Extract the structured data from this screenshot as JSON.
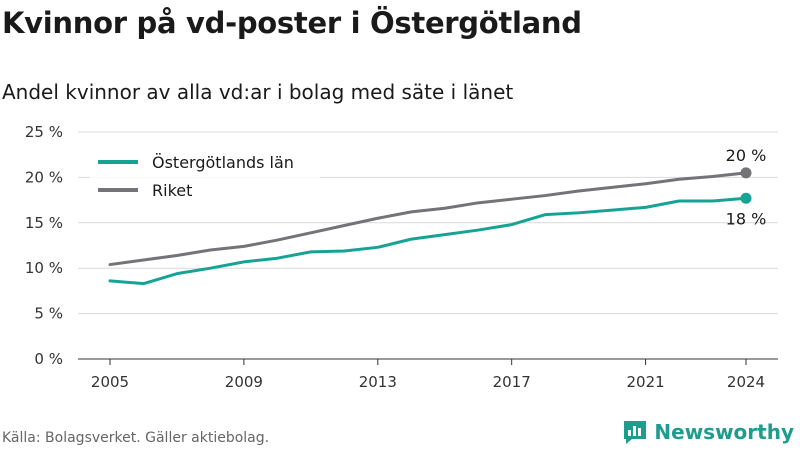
{
  "header": {
    "title": "Kvinnor på vd-poster i Östergötland",
    "subtitle": "Andel kvinnor av alla vd:ar i bolag med säte i länet"
  },
  "footer": {
    "source": "Källa: Bolagsverket. Gäller aktiebolag.",
    "brand": "Newsworthy",
    "brand_icon": "newsworthy-logo-icon"
  },
  "colors": {
    "series_1": "#16a394",
    "series_2": "#737378",
    "grid": "#d9d9d9",
    "brand": "#1e9c8c"
  },
  "chart_data": {
    "type": "line",
    "title": "Kvinnor på vd-poster i Östergötland",
    "subtitle": "Andel kvinnor av alla vd:ar i bolag med säte i länet",
    "xlabel": "",
    "ylabel": "",
    "x": [
      2005,
      2006,
      2007,
      2008,
      2009,
      2010,
      2011,
      2012,
      2013,
      2014,
      2015,
      2016,
      2017,
      2018,
      2019,
      2020,
      2021,
      2022,
      2023,
      2024
    ],
    "xticks": [
      2005,
      2009,
      2013,
      2017,
      2021,
      2024
    ],
    "xtick_labels": [
      "2005",
      "2009",
      "2013",
      "2017",
      "2021",
      "2024"
    ],
    "ylim": [
      0,
      25
    ],
    "yticks": [
      0,
      5,
      10,
      15,
      20,
      25
    ],
    "ytick_labels": [
      "0 %",
      "5 %",
      "10 %",
      "15 %",
      "20 %",
      "25 %"
    ],
    "grid": true,
    "legend_position": "top-left",
    "series": [
      {
        "name": "Östergötlands län",
        "color": "#16a394",
        "values": [
          8.6,
          8.3,
          9.4,
          10.0,
          10.7,
          11.1,
          11.8,
          11.9,
          12.3,
          13.2,
          13.7,
          14.2,
          14.8,
          15.9,
          16.1,
          16.4,
          16.7,
          17.4,
          17.4,
          17.7
        ],
        "end_label": "18 %"
      },
      {
        "name": "Riket",
        "color": "#737378",
        "values": [
          10.4,
          10.9,
          11.4,
          12.0,
          12.4,
          13.1,
          13.9,
          14.7,
          15.5,
          16.2,
          16.6,
          17.2,
          17.6,
          18.0,
          18.5,
          18.9,
          19.3,
          19.8,
          20.1,
          20.5
        ],
        "end_label": "20 %"
      }
    ]
  }
}
